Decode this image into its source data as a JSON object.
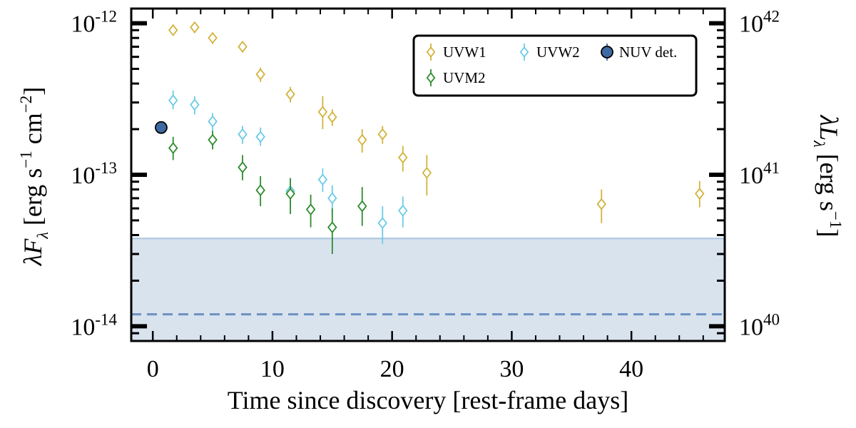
{
  "chart_data": {
    "type": "scatter",
    "x_axis": {
      "label": "Time since discovery [rest-frame days]",
      "range": [
        -1.8,
        47.8
      ],
      "ticks": [
        0,
        10,
        20,
        30,
        40
      ],
      "tick_labels": [
        "0",
        "10",
        "20",
        "30",
        "40"
      ]
    },
    "y_axis_left": {
      "label_main": "λF",
      "label_sub": "λ",
      "label_rest": " [erg s",
      "label_exp1": "−1",
      "label_mid": " cm",
      "label_exp2": "−2",
      "label_end": "]",
      "scale": "log",
      "range": [
        8e-15,
        1.25e-12
      ],
      "ticks": [
        1e-14,
        1e-13,
        1e-12
      ],
      "tick_labels": [
        {
          "base": "10",
          "exp": "-14"
        },
        {
          "base": "10",
          "exp": "-13"
        },
        {
          "base": "10",
          "exp": "-12"
        }
      ]
    },
    "y_axis_right": {
      "label_main": "λL",
      "label_sub": "λ",
      "label_rest": " [erg s",
      "label_exp": "−1",
      "label_end": "]",
      "scale": "log",
      "ticks": [
        1e-14,
        1e-13,
        1e-12
      ],
      "tick_labels": [
        {
          "base": "10",
          "exp": "40"
        },
        {
          "base": "10",
          "exp": "41"
        },
        {
          "base": "10",
          "exp": "42"
        }
      ]
    },
    "upper_limit_band": {
      "y_top": 3.8e-14,
      "color": "#d9e3ee",
      "edge_color": "#aac6e0"
    },
    "dashed_line": {
      "y": 1.2e-14,
      "color": "#6a92c2"
    },
    "legend": {
      "placement": "top-right"
    },
    "series": [
      {
        "name": "UVW1",
        "color": "#d2b33c",
        "marker": "diamond-open",
        "points": [
          {
            "x": 1.7,
            "y": 9e-13,
            "lo": 8.3e-13,
            "hi": 9.8e-13
          },
          {
            "x": 3.5,
            "y": 9.4e-13,
            "lo": 8.6e-13,
            "hi": 1.02e-12
          },
          {
            "x": 5.0,
            "y": 8e-13,
            "lo": 7.3e-13,
            "hi": 8.7e-13
          },
          {
            "x": 7.5,
            "y": 7e-13,
            "lo": 6.4e-13,
            "hi": 7.6e-13
          },
          {
            "x": 9.0,
            "y": 4.6e-13,
            "lo": 4.1e-13,
            "hi": 5.1e-13
          },
          {
            "x": 11.5,
            "y": 3.4e-13,
            "lo": 3e-13,
            "hi": 3.8e-13
          },
          {
            "x": 14.2,
            "y": 2.6e-13,
            "lo": 2e-13,
            "hi": 3.3e-13
          },
          {
            "x": 15.0,
            "y": 2.4e-13,
            "lo": 2.1e-13,
            "hi": 2.7e-13
          },
          {
            "x": 17.5,
            "y": 1.7e-13,
            "lo": 1.4e-13,
            "hi": 2e-13
          },
          {
            "x": 19.2,
            "y": 1.85e-13,
            "lo": 1.6e-13,
            "hi": 2.1e-13
          },
          {
            "x": 20.9,
            "y": 1.3e-13,
            "lo": 1.05e-13,
            "hi": 1.55e-13
          },
          {
            "x": 22.9,
            "y": 1.03e-13,
            "lo": 7.3e-14,
            "hi": 1.35e-13
          },
          {
            "x": 37.5,
            "y": 6.4e-14,
            "lo": 4.8e-14,
            "hi": 8e-14
          },
          {
            "x": 45.7,
            "y": 7.5e-14,
            "lo": 6.1e-14,
            "hi": 9.1e-14
          }
        ]
      },
      {
        "name": "UVW2",
        "color": "#6ccbe6",
        "marker": "diamond-open",
        "points": [
          {
            "x": 1.7,
            "y": 3.1e-13,
            "lo": 2.7e-13,
            "hi": 3.6e-13
          },
          {
            "x": 3.5,
            "y": 2.9e-13,
            "lo": 2.5e-13,
            "hi": 3.3e-13
          },
          {
            "x": 5.0,
            "y": 2.25e-13,
            "lo": 1.95e-13,
            "hi": 2.55e-13
          },
          {
            "x": 7.5,
            "y": 1.85e-13,
            "lo": 1.6e-13,
            "hi": 2.1e-13
          },
          {
            "x": 9.0,
            "y": 1.78e-13,
            "lo": 1.55e-13,
            "hi": 2.05e-13
          },
          {
            "x": 11.5,
            "y": 7.8e-14,
            "lo": 6.3e-14,
            "hi": 9.5e-14
          },
          {
            "x": 14.2,
            "y": 9.3e-14,
            "lo": 7.7e-14,
            "hi": 1.1e-13
          },
          {
            "x": 15.0,
            "y": 7e-14,
            "lo": 5.5e-14,
            "hi": 8.5e-14
          },
          {
            "x": 19.2,
            "y": 4.8e-14,
            "lo": 3.5e-14,
            "hi": 6.2e-14
          },
          {
            "x": 20.9,
            "y": 5.8e-14,
            "lo": 4.5e-14,
            "hi": 7.2e-14
          }
        ]
      },
      {
        "name": "NUV det.",
        "color": "#3d6aa3",
        "marker": "circle-filled",
        "points": [
          {
            "x": 0.7,
            "y": 2.05e-13,
            "lo": 1.98e-13,
            "hi": 2.12e-13
          }
        ]
      },
      {
        "name": "UVM2",
        "color": "#2e8b2e",
        "marker": "diamond-open",
        "points": [
          {
            "x": 1.7,
            "y": 1.5e-13,
            "lo": 1.25e-13,
            "hi": 1.78e-13
          },
          {
            "x": 5.0,
            "y": 1.7e-13,
            "lo": 1.47e-13,
            "hi": 1.95e-13
          },
          {
            "x": 7.5,
            "y": 1.12e-13,
            "lo": 9.2e-14,
            "hi": 1.35e-13
          },
          {
            "x": 9.0,
            "y": 7.9e-14,
            "lo": 6.2e-14,
            "hi": 9.8e-14
          },
          {
            "x": 11.5,
            "y": 7.5e-14,
            "lo": 5.5e-14,
            "hi": 9.5e-14
          },
          {
            "x": 13.2,
            "y": 5.9e-14,
            "lo": 4.5e-14,
            "hi": 7.4e-14
          },
          {
            "x": 15.0,
            "y": 4.5e-14,
            "lo": 3e-14,
            "hi": 6e-14
          },
          {
            "x": 17.5,
            "y": 6.2e-14,
            "lo": 4.6e-14,
            "hi": 8.3e-14
          }
        ]
      }
    ]
  }
}
